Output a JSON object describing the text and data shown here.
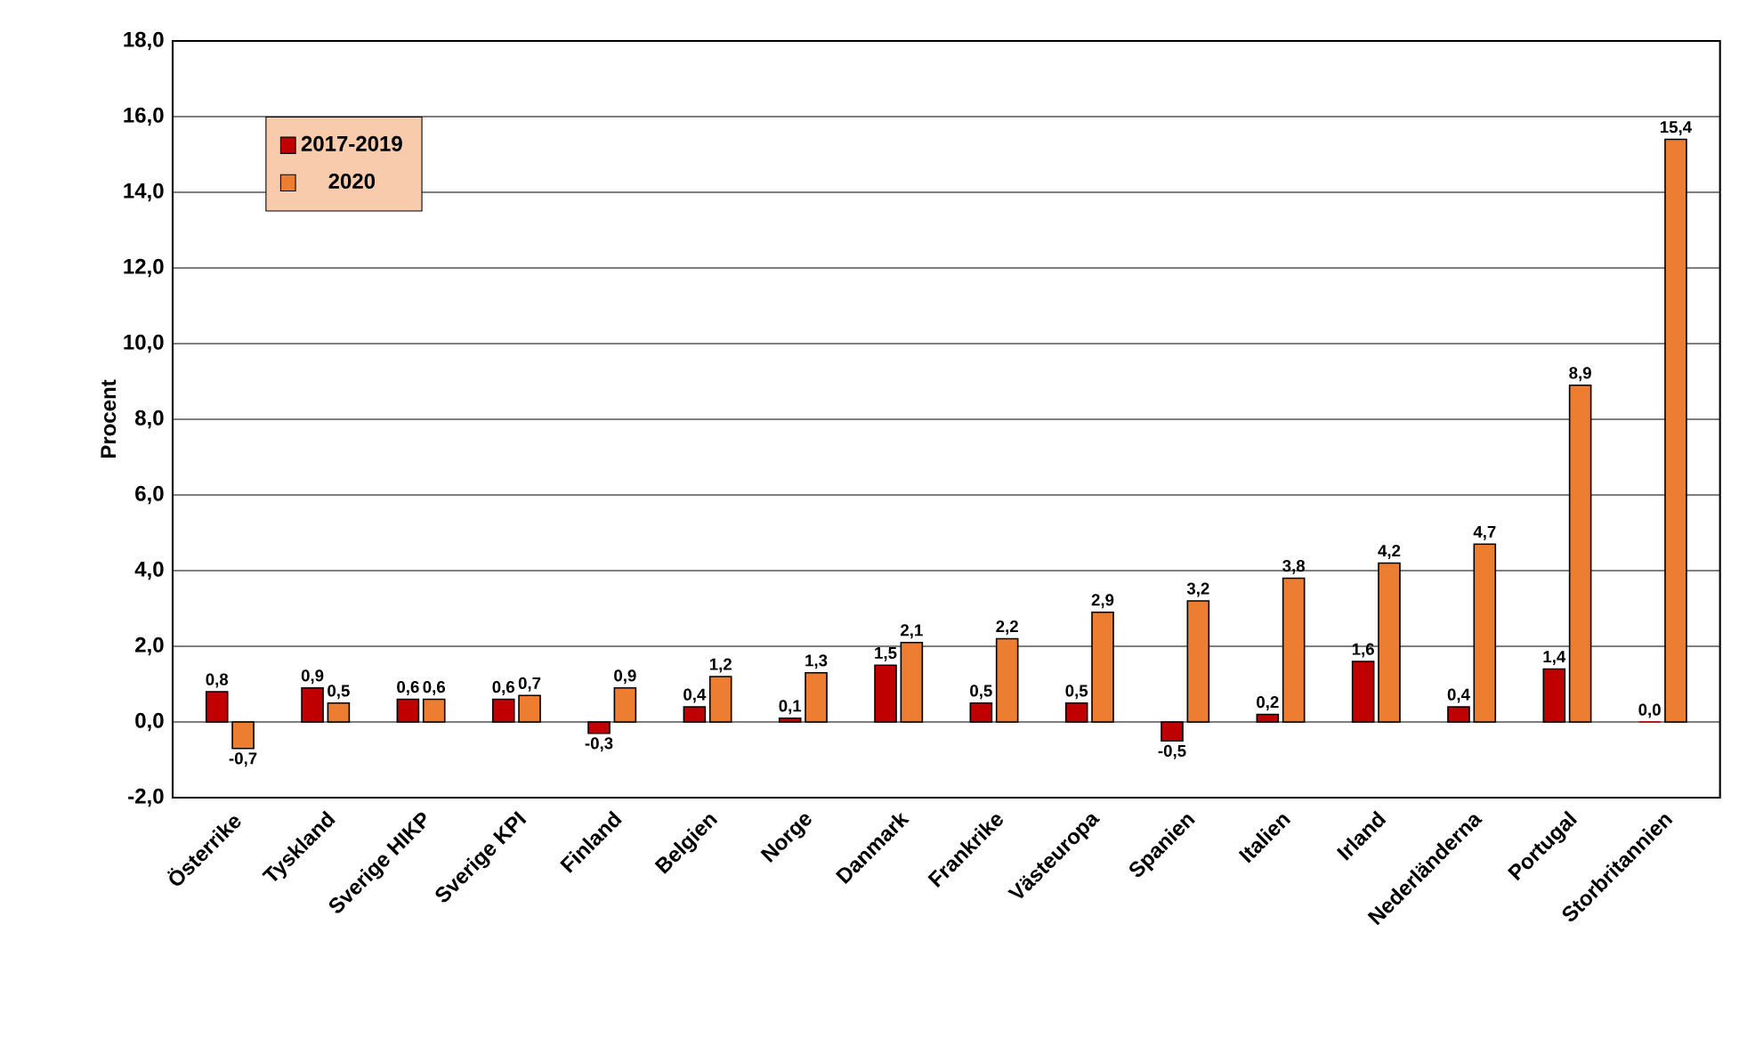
{
  "chart_data": {
    "type": "bar",
    "ylabel": "Procent",
    "categories": [
      "Österrike",
      "Tyskland",
      "Sverige HIKP",
      "Sverige KPI",
      "Finland",
      "Belgien",
      "Norge",
      "Danmark",
      "Frankrike",
      "Västeuropa",
      "Spanien",
      "Italien",
      "Irland",
      "Nederländerna",
      "Portugal",
      "Storbritannien"
    ],
    "series": [
      {
        "name": "2017-2019",
        "color": "#c00000",
        "values": [
          0.8,
          0.9,
          0.6,
          0.6,
          -0.3,
          0.4,
          0.1,
          1.5,
          0.5,
          0.5,
          -0.5,
          0.2,
          1.6,
          0.4,
          1.4,
          0.0
        ],
        "value_labels": [
          "0,8",
          "0,9",
          "0,6",
          "0,6",
          "-0,3",
          "0,4",
          "0,1",
          "1,5",
          "0,5",
          "0,5",
          "-0,5",
          "0,2",
          "1,6",
          "0,4",
          "1,4",
          "0,0"
        ]
      },
      {
        "name": "2020",
        "color": "#ed7d31",
        "values": [
          -0.7,
          0.5,
          0.6,
          0.7,
          0.9,
          1.2,
          1.3,
          2.1,
          2.2,
          2.9,
          3.2,
          3.8,
          4.2,
          4.7,
          8.9,
          15.4
        ],
        "value_labels": [
          "-0,7",
          "0,5",
          "0,6",
          "0,7",
          "0,9",
          "1,2",
          "1,3",
          "2,1",
          "2,2",
          "2,9",
          "3,2",
          "3,8",
          "4,2",
          "4,7",
          "8,9",
          "15,4"
        ]
      }
    ],
    "ylim": [
      -2,
      18
    ],
    "yticks": [
      {
        "value": -2,
        "label": "-2,0"
      },
      {
        "value": 0,
        "label": "0,0"
      },
      {
        "value": 2,
        "label": "2,0"
      },
      {
        "value": 4,
        "label": "4,0"
      },
      {
        "value": 6,
        "label": "6,0"
      },
      {
        "value": 8,
        "label": "8,0"
      },
      {
        "value": 10,
        "label": "10,0"
      },
      {
        "value": 12,
        "label": "12,0"
      },
      {
        "value": 14,
        "label": "14,0"
      },
      {
        "value": 16,
        "label": "16,0"
      },
      {
        "value": 18,
        "label": "18,0"
      }
    ],
    "grid": "y",
    "legend": "top left"
  }
}
